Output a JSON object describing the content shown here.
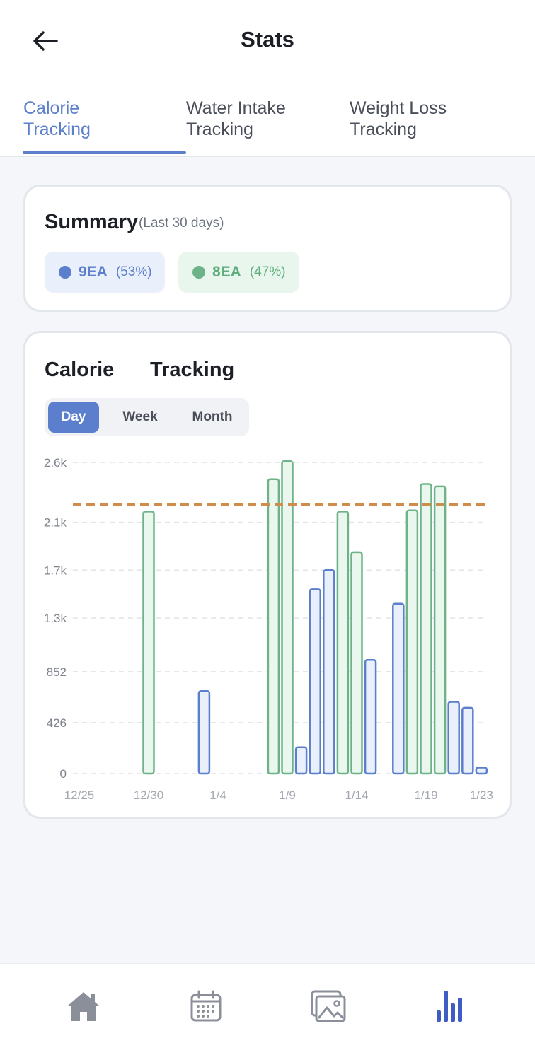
{
  "header": {
    "title": "Stats",
    "back_icon": "arrow-left-icon"
  },
  "tabs": [
    {
      "line1": "Calorie",
      "line2": "Tracking",
      "active": true
    },
    {
      "line1": "Water Intake",
      "line2": "Tracking",
      "active": false
    },
    {
      "line1": "Weight Loss",
      "line2": "Tracking",
      "active": false
    }
  ],
  "summary": {
    "title": "Summary",
    "subtitle": "(Last 30 days)",
    "items": [
      {
        "count": "9EA",
        "percent": "(53%)",
        "color": "#5b7fcc",
        "text_color": "#5b7fcc"
      },
      {
        "count": "8EA",
        "percent": "(47%)",
        "color": "#6db387",
        "text_color": "#5fae7d"
      }
    ]
  },
  "chart_card": {
    "title_word1": "Calorie",
    "title_word2": "Tracking",
    "period_options": [
      "Day",
      "Week",
      "Month"
    ],
    "selected_period": "Day"
  },
  "colors": {
    "accent": "#5b7fcc",
    "blue_fill": "#eaf0fb",
    "blue_stroke": "#5b7fcc",
    "green_fill": "#e9f7ee",
    "green_stroke": "#6db387",
    "goal_line": "#d08c4a",
    "nav_inactive": "#8a8f99",
    "nav_active": "#3f5bc4"
  },
  "chart_data": {
    "type": "bar",
    "x_labels": [
      "12/25",
      "12/30",
      "1/4",
      "1/9",
      "1/14",
      "1/19",
      "1/23"
    ],
    "x_label_days": [
      0,
      5,
      10,
      15,
      20,
      25,
      29
    ],
    "y_ticks": [
      0,
      426,
      852,
      1300,
      1700,
      2100,
      2600
    ],
    "y_tick_labels": [
      "0",
      "426",
      "852",
      "1.3k",
      "1.7k",
      "2.1k",
      "2.6k"
    ],
    "ylim": [
      0,
      2600
    ],
    "goal_value": 2250,
    "goal_style": "dashed",
    "gridlines": true,
    "series": [
      {
        "name": "blue",
        "points": [
          {
            "day": 9,
            "value": 690
          },
          {
            "day": 16,
            "value": 220
          },
          {
            "day": 17,
            "value": 1540
          },
          {
            "day": 18,
            "value": 1700
          },
          {
            "day": 21,
            "value": 950
          },
          {
            "day": 23,
            "value": 1420
          },
          {
            "day": 27,
            "value": 600
          },
          {
            "day": 28,
            "value": 550
          },
          {
            "day": 29,
            "value": 50
          }
        ]
      },
      {
        "name": "green",
        "points": [
          {
            "day": 5,
            "value": 2190
          },
          {
            "day": 14,
            "value": 2460
          },
          {
            "day": 15,
            "value": 2610
          },
          {
            "day": 19,
            "value": 2190
          },
          {
            "day": 20,
            "value": 1850
          },
          {
            "day": 24,
            "value": 2200
          },
          {
            "day": 25,
            "value": 2420
          },
          {
            "day": 26,
            "value": 2400
          }
        ]
      }
    ]
  },
  "bottom_nav": [
    {
      "icon": "home-icon",
      "active": false
    },
    {
      "icon": "calendar-icon",
      "active": false
    },
    {
      "icon": "gallery-icon",
      "active": false
    },
    {
      "icon": "bar-chart-icon",
      "active": true
    }
  ]
}
